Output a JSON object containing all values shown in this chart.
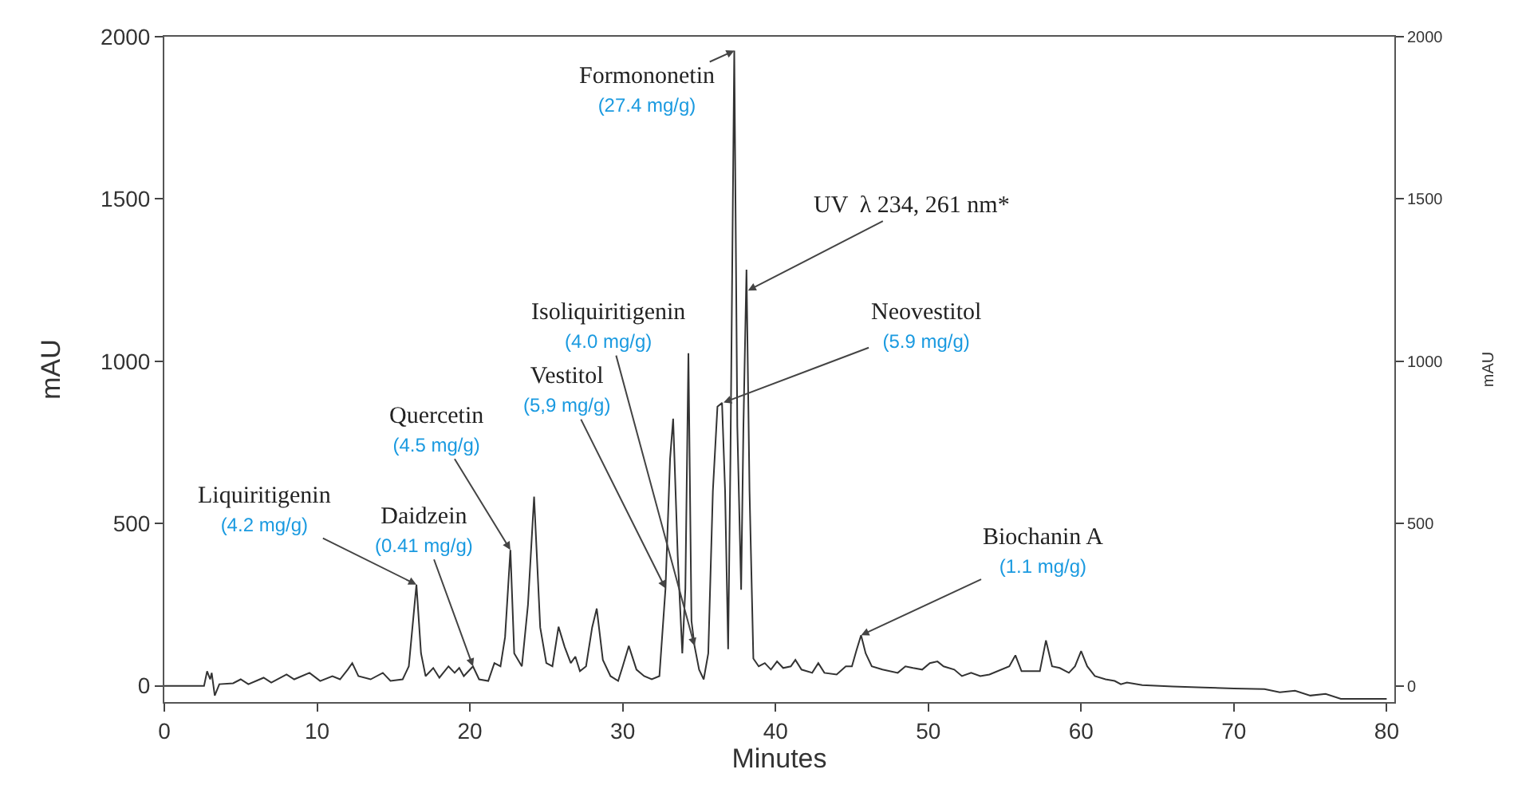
{
  "chart_data": {
    "type": "line",
    "xlabel": "Minutes",
    "ylabel": "mAU",
    "y2label": "mAU",
    "xlim": [
      0,
      80.5
    ],
    "xticks": [
      0,
      10,
      20,
      30,
      40,
      50,
      60,
      70,
      80
    ],
    "ylim": [
      -50,
      2000
    ],
    "yticks": [
      0,
      500,
      1000,
      1500,
      2000
    ],
    "y2lim": [
      -50,
      2000
    ],
    "y2ticks": [
      0,
      500,
      1000,
      1500,
      2000
    ],
    "marker": "none",
    "line_style": "solid",
    "series": [
      {
        "color": "#333333",
        "x": [
          0,
          2.6,
          2.8,
          3.0,
          3.1,
          3.3,
          3.6,
          4.5,
          5,
          5.5,
          6.5,
          7,
          8,
          8.5,
          9.5,
          10.2,
          11,
          11.5,
          12,
          12.3,
          12.7,
          13.5,
          14.3,
          14.8,
          15.6,
          16.0,
          16.5,
          16.8,
          17.1,
          17.6,
          18,
          18.6,
          19,
          19.3,
          19.6,
          20.2,
          20.6,
          21.2,
          21.6,
          22.0,
          22.3,
          22.65,
          22.9,
          23.4,
          23.8,
          24.2,
          24.6,
          25.0,
          25.4,
          25.8,
          26.2,
          26.6,
          26.9,
          27.2,
          27.6,
          28.0,
          28.3,
          28.7,
          29.2,
          29.7,
          30.0,
          30.4,
          30.9,
          31.4,
          31.9,
          32.4,
          32.8,
          33.1,
          33.3,
          33.6,
          33.9,
          34.1,
          34.3,
          34.5,
          34.7,
          35.0,
          35.3,
          35.6,
          35.9,
          36.2,
          36.5,
          36.7,
          36.9,
          37.05,
          37.3,
          37.5,
          37.75,
          37.9,
          38.1,
          38.3,
          38.55,
          38.9,
          39.3,
          39.7,
          40.1,
          40.5,
          41,
          41.3,
          41.7,
          42.4,
          42.8,
          43.2,
          44.0,
          44.6,
          45.0,
          45.3,
          45.6,
          45.9,
          46.3,
          47.0,
          48,
          48.5,
          49,
          49.6,
          50.1,
          50.6,
          51,
          51.7,
          52.2,
          52.8,
          53.4,
          54,
          55.3,
          55.7,
          56.1,
          56.8,
          57.3,
          57.7,
          58.1,
          58.6,
          59.2,
          59.6,
          60.0,
          60.4,
          60.9,
          61.6,
          62.2,
          62.6,
          63,
          64,
          66,
          68,
          70,
          72,
          73,
          74,
          75,
          76,
          77,
          80
        ],
        "values": [
          0,
          0,
          45,
          20,
          40,
          -30,
          5,
          8,
          20,
          5,
          25,
          10,
          35,
          20,
          40,
          15,
          30,
          20,
          50,
          70,
          30,
          20,
          40,
          15,
          20,
          60,
          312,
          100,
          30,
          55,
          25,
          60,
          40,
          55,
          30,
          60,
          20,
          15,
          70,
          60,
          150,
          419,
          100,
          60,
          250,
          583,
          180,
          70,
          60,
          182,
          120,
          70,
          90,
          45,
          60,
          180,
          238,
          80,
          30,
          15,
          60,
          123,
          50,
          30,
          20,
          30,
          300,
          700,
          823,
          400,
          100,
          300,
          1025,
          200,
          123,
          50,
          20,
          100,
          600,
          860,
          872,
          600,
          113,
          700,
          1957,
          800,
          296,
          800,
          1282,
          600,
          84,
          60,
          70,
          50,
          75,
          55,
          60,
          80,
          50,
          40,
          70,
          40,
          35,
          60,
          60,
          110,
          156,
          100,
          60,
          50,
          40,
          60,
          55,
          50,
          70,
          75,
          60,
          50,
          30,
          40,
          30,
          35,
          60,
          94,
          45,
          45,
          45,
          140,
          60,
          55,
          40,
          60,
          107,
          60,
          30,
          20,
          15,
          5,
          10,
          2,
          -2,
          -5,
          -8,
          -10,
          -20,
          -15,
          -30,
          -25,
          -40,
          -40
        ]
      }
    ],
    "annotations": [
      {
        "text": "Liquiritigenin\n(4.2 mg/g)",
        "x": 16.5,
        "y": 312
      },
      {
        "text": "Daidzein\n(0.41 mg/g)",
        "x": 20.2,
        "y": 60
      },
      {
        "text": "Quercetin\n(4.5 mg/g)",
        "x": 22.65,
        "y": 419
      },
      {
        "text": "Vestitol\n(5,9 mg/g)",
        "x": 32.8,
        "y": 300
      },
      {
        "text": "Isoliquiritigenin\n(4.0 mg/g)",
        "x": 34.7,
        "y": 123
      },
      {
        "text": "Formononetin\n(27.4 mg/g)",
        "x": 37.3,
        "y": 1957
      },
      {
        "text": "UV  λ 234, 261 nm*",
        "x": 38.2,
        "y": 1218
      },
      {
        "text": "Neovestitol\n(5.9 mg/g)",
        "x": 36.6,
        "y": 873
      },
      {
        "text": "Biochanin A\n(1.1 mg/g)",
        "x": 45.6,
        "y": 156
      }
    ]
  }
}
